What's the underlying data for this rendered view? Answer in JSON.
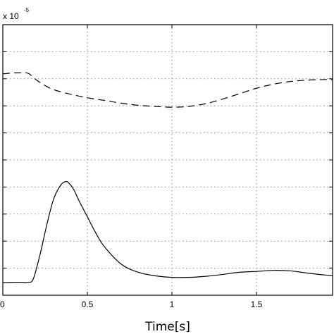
{
  "chart_data": {
    "type": "line",
    "xlabel": "Time[s]",
    "x_ticks": [
      "0",
      "0.5",
      "1",
      "1.5"
    ],
    "xlim": [
      0,
      1.95
    ],
    "y_exponent": {
      "base": "x 10",
      "power": "-5"
    },
    "ylim": [
      0,
      10
    ],
    "grid": true,
    "series": [
      {
        "style": "dashed",
        "color": "#000000",
        "x": [
          0,
          0.05,
          0.1,
          0.15,
          0.2,
          0.25,
          0.3,
          0.4,
          0.5,
          0.6,
          0.7,
          0.8,
          0.9,
          1.0,
          1.1,
          1.2,
          1.3,
          1.4,
          1.5,
          1.6,
          1.7,
          1.8,
          1.9,
          1.95
        ],
        "y": [
          8.18,
          8.21,
          8.22,
          8.2,
          7.95,
          7.75,
          7.6,
          7.43,
          7.3,
          7.2,
          7.1,
          7.02,
          6.98,
          6.95,
          6.98,
          7.08,
          7.25,
          7.45,
          7.65,
          7.8,
          7.9,
          7.95,
          7.97,
          7.97
        ]
      },
      {
        "style": "solid",
        "color": "#000000",
        "x": [
          0,
          0.1,
          0.15,
          0.18,
          0.22,
          0.26,
          0.3,
          0.34,
          0.37,
          0.39,
          0.42,
          0.45,
          0.5,
          0.55,
          0.6,
          0.7,
          0.8,
          0.9,
          1.0,
          1.1,
          1.2,
          1.3,
          1.4,
          1.5,
          1.6,
          1.7,
          1.8,
          1.9,
          1.95
        ],
        "y": [
          0.47,
          0.48,
          0.48,
          0.6,
          1.5,
          2.6,
          3.55,
          4.05,
          4.2,
          4.15,
          3.9,
          3.5,
          2.9,
          2.3,
          1.8,
          1.15,
          0.85,
          0.72,
          0.66,
          0.66,
          0.7,
          0.77,
          0.85,
          0.88,
          0.92,
          0.9,
          0.82,
          0.75,
          0.73
        ]
      }
    ]
  }
}
